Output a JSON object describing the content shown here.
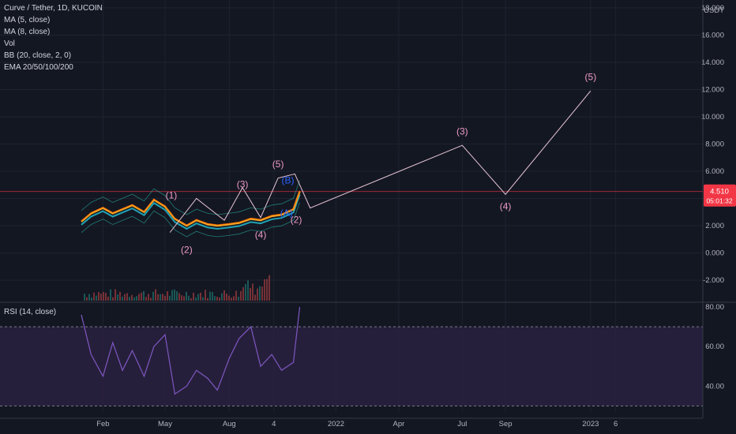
{
  "header": {
    "symbol": "Curve / Tether, 1D, KUCOIN",
    "indicators": [
      "MA (5, close)",
      "MA (8, close)",
      "Vol",
      "BB (20, close, 2, 0)",
      "EMA 20/50/100/200"
    ],
    "currency": "USDT"
  },
  "price_badge": {
    "price": "4.510",
    "countdown": "05:01:32",
    "color": "#f23645"
  },
  "rsi_panel": {
    "label": "RSI (14, close)"
  },
  "colors": {
    "background": "#131722",
    "grid": "#1f2330",
    "wave_line": "#e8c6d6",
    "wave_label": "#ef9ac8",
    "abc_label": "#2962ff",
    "rsi": "#7e57c2",
    "rsi_band": "#2a2140"
  },
  "chart_data": [
    {
      "type": "line",
      "title": "Curve / Tether, 1D, KUCOIN",
      "y_unit": "USDT",
      "y_ticks": [
        "-2.000",
        "0.000",
        "2.000",
        "4.000",
        "6.000",
        "8.000",
        "10.000",
        "12.000",
        "14.000",
        "16.000",
        "18.000"
      ],
      "ylim": [
        -3.6,
        18.6
      ],
      "x_ticks": [
        "Feb",
        "May",
        "Aug",
        "4",
        "2022",
        "Apr",
        "Jul",
        "Sep",
        "2023",
        "6"
      ],
      "grid": true,
      "current_price": 4.51,
      "price_series": {
        "name": "CRV/USDT",
        "x": [
          "2021-01-01",
          "2021-01-15",
          "2021-02-01",
          "2021-02-15",
          "2021-03-01",
          "2021-03-15",
          "2021-04-01",
          "2021-04-15",
          "2021-05-01",
          "2021-05-15",
          "2021-06-01",
          "2021-06-15",
          "2021-07-01",
          "2021-07-15",
          "2021-08-01",
          "2021-08-15",
          "2021-09-01",
          "2021-09-15",
          "2021-10-01",
          "2021-10-15",
          "2021-11-01",
          "2021-11-10"
        ],
        "values": [
          2.3,
          2.9,
          3.3,
          2.9,
          3.2,
          3.5,
          3.0,
          3.9,
          3.4,
          2.5,
          2.0,
          2.4,
          2.1,
          2.0,
          2.1,
          2.2,
          2.5,
          2.4,
          2.7,
          2.8,
          3.2,
          4.51
        ]
      },
      "elliott_wave_path": {
        "x": [
          "2021-05-08",
          "2021-06-15",
          "2021-07-25",
          "2021-08-20",
          "2021-09-15",
          "2021-10-10",
          "2021-11-03",
          "2021-11-25",
          "2022-07-01",
          "2022-09-01",
          "2023-01-01"
        ],
        "y": [
          1.5,
          4.0,
          2.4,
          4.8,
          2.6,
          5.5,
          5.8,
          3.3,
          7.9,
          4.3,
          11.9
        ]
      },
      "wave_labels": [
        {
          "text": "(1)",
          "x": "2021-05-10",
          "y": 4.0
        },
        {
          "text": "(2)",
          "x": "2021-06-01",
          "y": 0.0
        },
        {
          "text": "(3)",
          "x": "2021-08-20",
          "y": 4.8
        },
        {
          "text": "(4)",
          "x": "2021-09-15",
          "y": 1.1
        },
        {
          "text": "(5)",
          "x": "2021-10-10",
          "y": 6.3
        },
        {
          "text": "(2)",
          "x": "2021-11-05",
          "y": 2.2
        },
        {
          "text": "(3)",
          "x": "2022-07-01",
          "y": 8.7
        },
        {
          "text": "(4)",
          "x": "2022-09-01",
          "y": 3.2
        },
        {
          "text": "(5)",
          "x": "2023-01-01",
          "y": 12.7
        }
      ],
      "abc_labels": [
        {
          "text": "(B)",
          "x": "2021-10-24",
          "y": 5.1
        },
        {
          "text": "(A)",
          "x": "2021-10-22",
          "y": 2.7
        }
      ]
    },
    {
      "type": "line",
      "title": "RSI (14, close)",
      "y_ticks": [
        "40.00",
        "60.00",
        "80.00"
      ],
      "ylim": [
        27,
        82
      ],
      "band": [
        30,
        70
      ],
      "series": [
        {
          "name": "RSI",
          "x": [
            "2021-01-01",
            "2021-01-15",
            "2021-02-01",
            "2021-02-15",
            "2021-03-01",
            "2021-03-15",
            "2021-04-01",
            "2021-04-15",
            "2021-05-01",
            "2021-05-15",
            "2021-06-01",
            "2021-06-15",
            "2021-07-01",
            "2021-07-15",
            "2021-08-01",
            "2021-08-15",
            "2021-09-01",
            "2021-09-15",
            "2021-10-01",
            "2021-10-15",
            "2021-11-01",
            "2021-11-10"
          ],
          "values": [
            76,
            56,
            45,
            62,
            48,
            58,
            45,
            60,
            66,
            36,
            40,
            48,
            44,
            38,
            54,
            64,
            70,
            50,
            56,
            48,
            52,
            80
          ]
        }
      ]
    }
  ]
}
